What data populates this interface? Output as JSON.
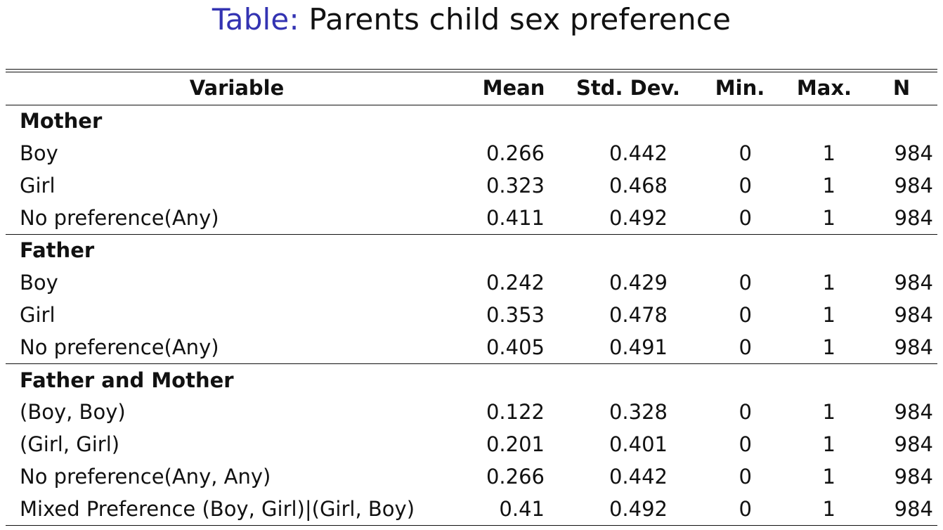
{
  "title": {
    "prefix": "Table:",
    "text": "Parents child sex preference"
  },
  "columns": [
    "Variable",
    "Mean",
    "Std. Dev.",
    "Min.",
    "Max.",
    "N"
  ],
  "groups": [
    {
      "label": "Mother",
      "rows": [
        {
          "variable": "Boy",
          "mean": "0.266",
          "sd": "0.442",
          "min": "0",
          "max": "1",
          "n": "984"
        },
        {
          "variable": "Girl",
          "mean": "0.323",
          "sd": "0.468",
          "min": "0",
          "max": "1",
          "n": "984"
        },
        {
          "variable": "No preference(Any)",
          "mean": "0.411",
          "sd": "0.492",
          "min": "0",
          "max": "1",
          "n": "984"
        }
      ]
    },
    {
      "label": "Father",
      "rows": [
        {
          "variable": "Boy",
          "mean": "0.242",
          "sd": "0.429",
          "min": "0",
          "max": "1",
          "n": "984"
        },
        {
          "variable": "Girl",
          "mean": "0.353",
          "sd": "0.478",
          "min": "0",
          "max": "1",
          "n": "984"
        },
        {
          "variable": "No preference(Any)",
          "mean": "0.405",
          "sd": "0.491",
          "min": "0",
          "max": "1",
          "n": "984"
        }
      ]
    },
    {
      "label": "Father and Mother",
      "rows": [
        {
          "variable": "(Boy, Boy)",
          "mean": "0.122",
          "sd": "0.328",
          "min": "0",
          "max": "1",
          "n": "984"
        },
        {
          "variable": "(Girl, Girl)",
          "mean": "0.201",
          "sd": "0.401",
          "min": "0",
          "max": "1",
          "n": "984"
        },
        {
          "variable": "No preference(Any, Any)",
          "mean": "0.266",
          "sd": "0.442",
          "min": "0",
          "max": "1",
          "n": "984"
        },
        {
          "variable": "Mixed Preference (Boy, Girl)|(Girl, Boy)",
          "mean": "0.41",
          "sd": "0.492",
          "min": "0",
          "max": "1",
          "n": "984"
        }
      ]
    }
  ],
  "colors": {
    "title_prefix": "#3333b2",
    "text": "#111111"
  }
}
